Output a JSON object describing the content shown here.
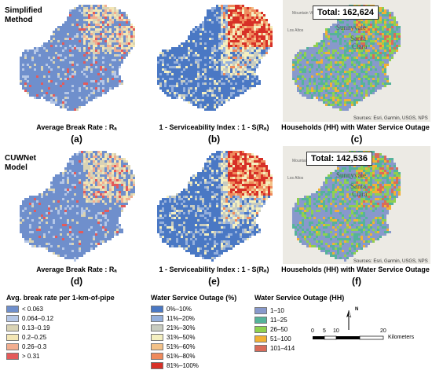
{
  "rows": {
    "top_label_line1": "Simplified",
    "top_label_line2": "Method",
    "bottom_label_line1": "CUWNet",
    "bottom_label_line2": "Model"
  },
  "panels": [
    {
      "letter": "(a)",
      "caption": "Average Break Rate : Rₐ"
    },
    {
      "letter": "(b)",
      "caption": "1 - Serviceability Index : 1 - S(Rₐ)"
    },
    {
      "letter": "(c)",
      "caption": "Households (HH) with Water Service Outage",
      "total": "Total: 162,624",
      "source": "Sources: Esri, Garmin, USGS, NPS"
    },
    {
      "letter": "(d)",
      "caption": "Average Break Rate : Rₐ"
    },
    {
      "letter": "(e)",
      "caption": "1 - Serviceability Index : 1 - S(Rₐ)"
    },
    {
      "letter": "(f)",
      "caption": "Households (HH) with Water Service Outage",
      "total": "Total: 142,536",
      "source": "Sources: Esri, Garmin, USGS, NPS"
    }
  ],
  "basemap_labels": {
    "sunnyvale": "Sunnyvale",
    "santa": "Santa",
    "clara": "Clara",
    "mountain_view": "Mountain View",
    "los_altos": "Los Altos"
  },
  "legend_break_rate": {
    "title": "Avg. break rate per 1-km-of-pipe",
    "items": [
      {
        "label": "< 0.063",
        "color": "#6f8fcc"
      },
      {
        "label": "0.064–0.12",
        "color": "#b5c7e6"
      },
      {
        "label": "0.13–0.19",
        "color": "#d9d3b4"
      },
      {
        "label": "0.2–0.25",
        "color": "#f3e6b5"
      },
      {
        "label": "0.26–0.3",
        "color": "#f2ad8f"
      },
      {
        "label": "> 0.31",
        "color": "#e45a5a"
      }
    ]
  },
  "legend_outage_pct": {
    "title": "Water Service Outage (%)",
    "items": [
      {
        "label": "0%–10%",
        "color": "#4a78c4"
      },
      {
        "label": "11%–20%",
        "color": "#95b0dc"
      },
      {
        "label": "21%–30%",
        "color": "#c8ccc0"
      },
      {
        "label": "31%–50%",
        "color": "#f4efc0"
      },
      {
        "label": "51%–60%",
        "color": "#f3c188"
      },
      {
        "label": "61%–80%",
        "color": "#ef8a5c"
      },
      {
        "label": "81%–100%",
        "color": "#d73027"
      }
    ]
  },
  "legend_outage_hh": {
    "title": "Water Service Outage (HH)",
    "items": [
      {
        "label": "1–10",
        "color": "#8899cc"
      },
      {
        "label": "11–25",
        "color": "#55b39a"
      },
      {
        "label": "26–50",
        "color": "#8fd14f"
      },
      {
        "label": "51–100",
        "color": "#f2b134"
      },
      {
        "label": "101–414",
        "color": "#d96b5a"
      }
    ]
  },
  "scale_bar": {
    "ticks": [
      "0",
      "5",
      "10",
      "20"
    ],
    "unit": "Kilometers"
  },
  "north_arrow": "N"
}
